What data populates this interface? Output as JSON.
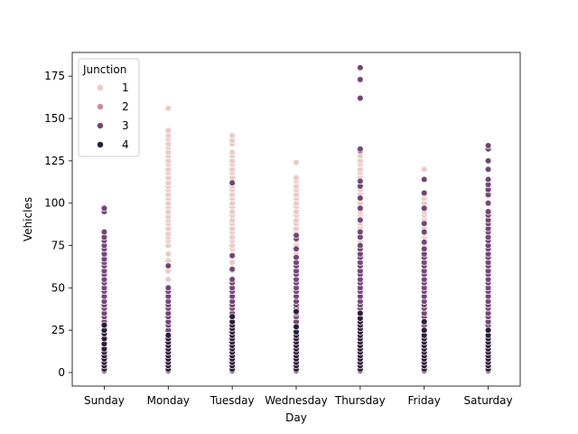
{
  "chart_data": {
    "type": "scatter",
    "title": "",
    "xlabel": "Day",
    "ylabel": "Vehicles",
    "categories": [
      "Sunday",
      "Monday",
      "Tuesday",
      "Wednesday",
      "Thursday",
      "Friday",
      "Saturday"
    ],
    "ylim": [
      -8,
      189
    ],
    "yticks": [
      0,
      25,
      50,
      75,
      100,
      125,
      150,
      175
    ],
    "grid": false,
    "legend": {
      "title": "Junction",
      "placement": "top-left",
      "entries": [
        "1",
        "2",
        "3",
        "4"
      ]
    },
    "colors": {
      "1": "#ebcbc5",
      "2": "#c78a9e",
      "3": "#744577",
      "4": "#2a1d3b"
    },
    "series": [
      {
        "name": "1",
        "values": [
          [],
          [
            30,
            35,
            40,
            45,
            50,
            55,
            60,
            63,
            66,
            70,
            75,
            78,
            80,
            82,
            85,
            88,
            90,
            92,
            95,
            98,
            100,
            103,
            105,
            108,
            110,
            112,
            115,
            118,
            120,
            123,
            125,
            128,
            130,
            133,
            135,
            138,
            140,
            143,
            156
          ],
          [
            30,
            35,
            40,
            45,
            50,
            55,
            60,
            65,
            70,
            73,
            75,
            78,
            80,
            83,
            85,
            88,
            90,
            93,
            95,
            98,
            100,
            103,
            105,
            108,
            110,
            113,
            115,
            118,
            120,
            123,
            125,
            128,
            130,
            135,
            137,
            140
          ],
          [
            30,
            35,
            40,
            45,
            50,
            55,
            60,
            65,
            70,
            73,
            75,
            78,
            80,
            83,
            85,
            88,
            90,
            93,
            95,
            98,
            100,
            103,
            105,
            108,
            110,
            113,
            115,
            124
          ],
          [
            30,
            35,
            40,
            45,
            50,
            55,
            60,
            65,
            70,
            73,
            75,
            78,
            80,
            83,
            85,
            88,
            90,
            93,
            95,
            98,
            100,
            103,
            105,
            108,
            110,
            112,
            115,
            118,
            120,
            123,
            125,
            128
          ],
          [
            25,
            30,
            35,
            40,
            45,
            50,
            55,
            60,
            63,
            65,
            68,
            70,
            72,
            75,
            78,
            80,
            82,
            85,
            88,
            90,
            93,
            95,
            98,
            100,
            103,
            105,
            120
          ],
          []
        ]
      },
      {
        "name": "2",
        "values": [
          [],
          [],
          [],
          [],
          [],
          [],
          []
        ]
      },
      {
        "name": "3",
        "values": [
          [
            1,
            3,
            5,
            8,
            10,
            12,
            15,
            18,
            20,
            22,
            25,
            28,
            30,
            33,
            35,
            38,
            40,
            42,
            45,
            48,
            50,
            53,
            55,
            58,
            60,
            63,
            65,
            67,
            70,
            73,
            75,
            78,
            80,
            83,
            95,
            97
          ],
          [
            1,
            3,
            5,
            8,
            10,
            12,
            15,
            18,
            20,
            22,
            25,
            28,
            30,
            33,
            35,
            38,
            40,
            42,
            45,
            48,
            50,
            63
          ],
          [
            1,
            3,
            5,
            8,
            10,
            12,
            15,
            18,
            20,
            22,
            25,
            28,
            30,
            33,
            35,
            38,
            40,
            42,
            45,
            48,
            50,
            53,
            55,
            61,
            69,
            112
          ],
          [
            1,
            3,
            5,
            8,
            10,
            12,
            15,
            18,
            20,
            22,
            25,
            28,
            30,
            33,
            35,
            38,
            40,
            42,
            45,
            48,
            50,
            53,
            55,
            58,
            60,
            63,
            65,
            68,
            73,
            79,
            81
          ],
          [
            1,
            3,
            5,
            8,
            10,
            12,
            15,
            18,
            20,
            22,
            25,
            28,
            30,
            33,
            35,
            38,
            40,
            42,
            45,
            48,
            50,
            53,
            55,
            58,
            60,
            63,
            65,
            68,
            70,
            73,
            75,
            80,
            83,
            90,
            97,
            103,
            110,
            113,
            131,
            132,
            162,
            173,
            180
          ],
          [
            1,
            3,
            5,
            8,
            10,
            12,
            15,
            18,
            20,
            22,
            25,
            28,
            30,
            33,
            35,
            38,
            40,
            42,
            45,
            48,
            50,
            53,
            55,
            58,
            60,
            63,
            65,
            68,
            70,
            73,
            77,
            83,
            88,
            97,
            106,
            114
          ],
          [
            1,
            3,
            5,
            8,
            10,
            12,
            15,
            18,
            20,
            22,
            25,
            28,
            30,
            33,
            35,
            38,
            40,
            42,
            45,
            48,
            50,
            53,
            55,
            58,
            60,
            63,
            65,
            68,
            70,
            73,
            75,
            78,
            80,
            83,
            85,
            88,
            90,
            93,
            95,
            100,
            105,
            108,
            111,
            114,
            120,
            125,
            132,
            134
          ]
        ]
      },
      {
        "name": "4",
        "values": [
          [
            2,
            4,
            6,
            8,
            10,
            12,
            14,
            17,
            20,
            23,
            25,
            28
          ],
          [
            2,
            4,
            6,
            8,
            10,
            12,
            14,
            16,
            18,
            20,
            22
          ],
          [
            2,
            4,
            6,
            8,
            10,
            12,
            14,
            16,
            18,
            20,
            22,
            24,
            26,
            28,
            30,
            33
          ],
          [
            2,
            4,
            6,
            8,
            10,
            12,
            14,
            16,
            18,
            20,
            22,
            24,
            27,
            36
          ],
          [
            2,
            4,
            6,
            8,
            10,
            12,
            14,
            16,
            18,
            20,
            22,
            24,
            26,
            28,
            30,
            32,
            35
          ],
          [
            2,
            4,
            6,
            8,
            10,
            12,
            14,
            16,
            18,
            20,
            22,
            25,
            30
          ],
          [
            2,
            4,
            6,
            8,
            10,
            12,
            14,
            16,
            18,
            20,
            22,
            25
          ]
        ]
      }
    ]
  }
}
